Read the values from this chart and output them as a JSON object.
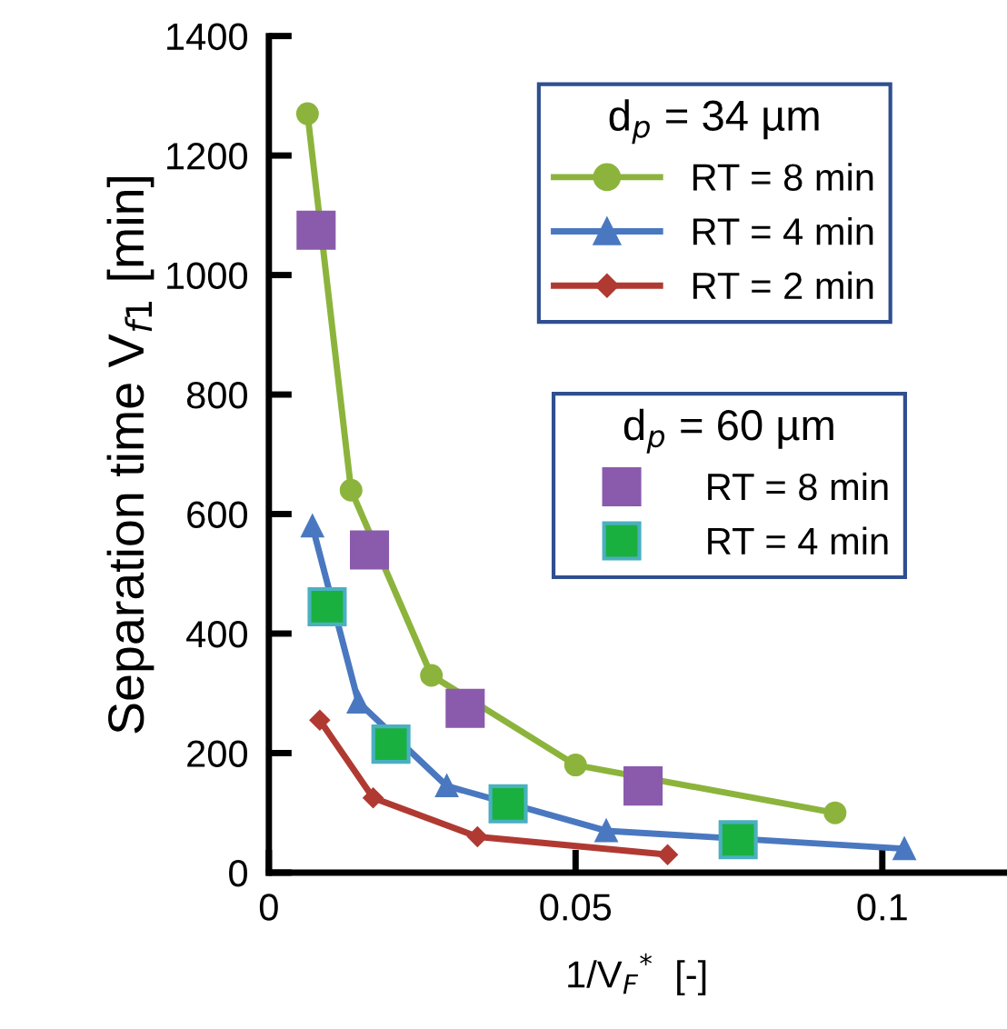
{
  "chart_data": {
    "type": "line",
    "xlabel": "1/V$_{F}$$^{*}$  [-]",
    "ylabel": "Separation time V$_{f1}$ [min]",
    "legend_title": [
      "d$_{p}$ = 34 µm",
      "d$_{p}$ = 60 µm"
    ],
    "xlim": [
      0,
      0.12
    ],
    "ylim": [
      0,
      1400
    ],
    "xticks": [
      0,
      0.05,
      0.1
    ],
    "yticks": [
      0,
      200,
      400,
      600,
      800,
      1000,
      1200,
      1400
    ],
    "grid": false,
    "legend": "top right",
    "series": [
      {
        "name": "RT = 8 min",
        "marker": "circle",
        "color": "#8cb43c",
        "x": [
          0.0063,
          0.0134,
          0.0265,
          0.05,
          0.0923
        ],
        "values": [
          1270,
          640,
          330,
          180,
          100
        ]
      },
      {
        "name": "RT = 4 min",
        "marker": "triangle",
        "color": "#4a78c0",
        "x": [
          0.0071,
          0.0146,
          0.029,
          0.055,
          0.1036
        ],
        "values": [
          580,
          285,
          145,
          70,
          40
        ]
      },
      {
        "name": "RT = 2 min",
        "marker": "diamond",
        "color": "#b03a32",
        "x": [
          0.0083,
          0.017,
          0.034,
          0.065
        ],
        "values": [
          255,
          125,
          60,
          30
        ]
      },
      {
        "name": "RT = 8 min",
        "type": "scatter",
        "marker": "square",
        "color": "#8a5aac",
        "x": [
          0.0077,
          0.0164,
          0.032,
          0.061
        ],
        "values": [
          1075,
          540,
          275,
          145
        ]
      },
      {
        "name": "RT = 4 min",
        "type": "scatter",
        "marker": "square",
        "color": "#1ab040",
        "x": [
          0.0095,
          0.0199,
          0.039,
          0.0765
        ],
        "values": [
          445,
          215,
          115,
          55
        ]
      }
    ]
  }
}
